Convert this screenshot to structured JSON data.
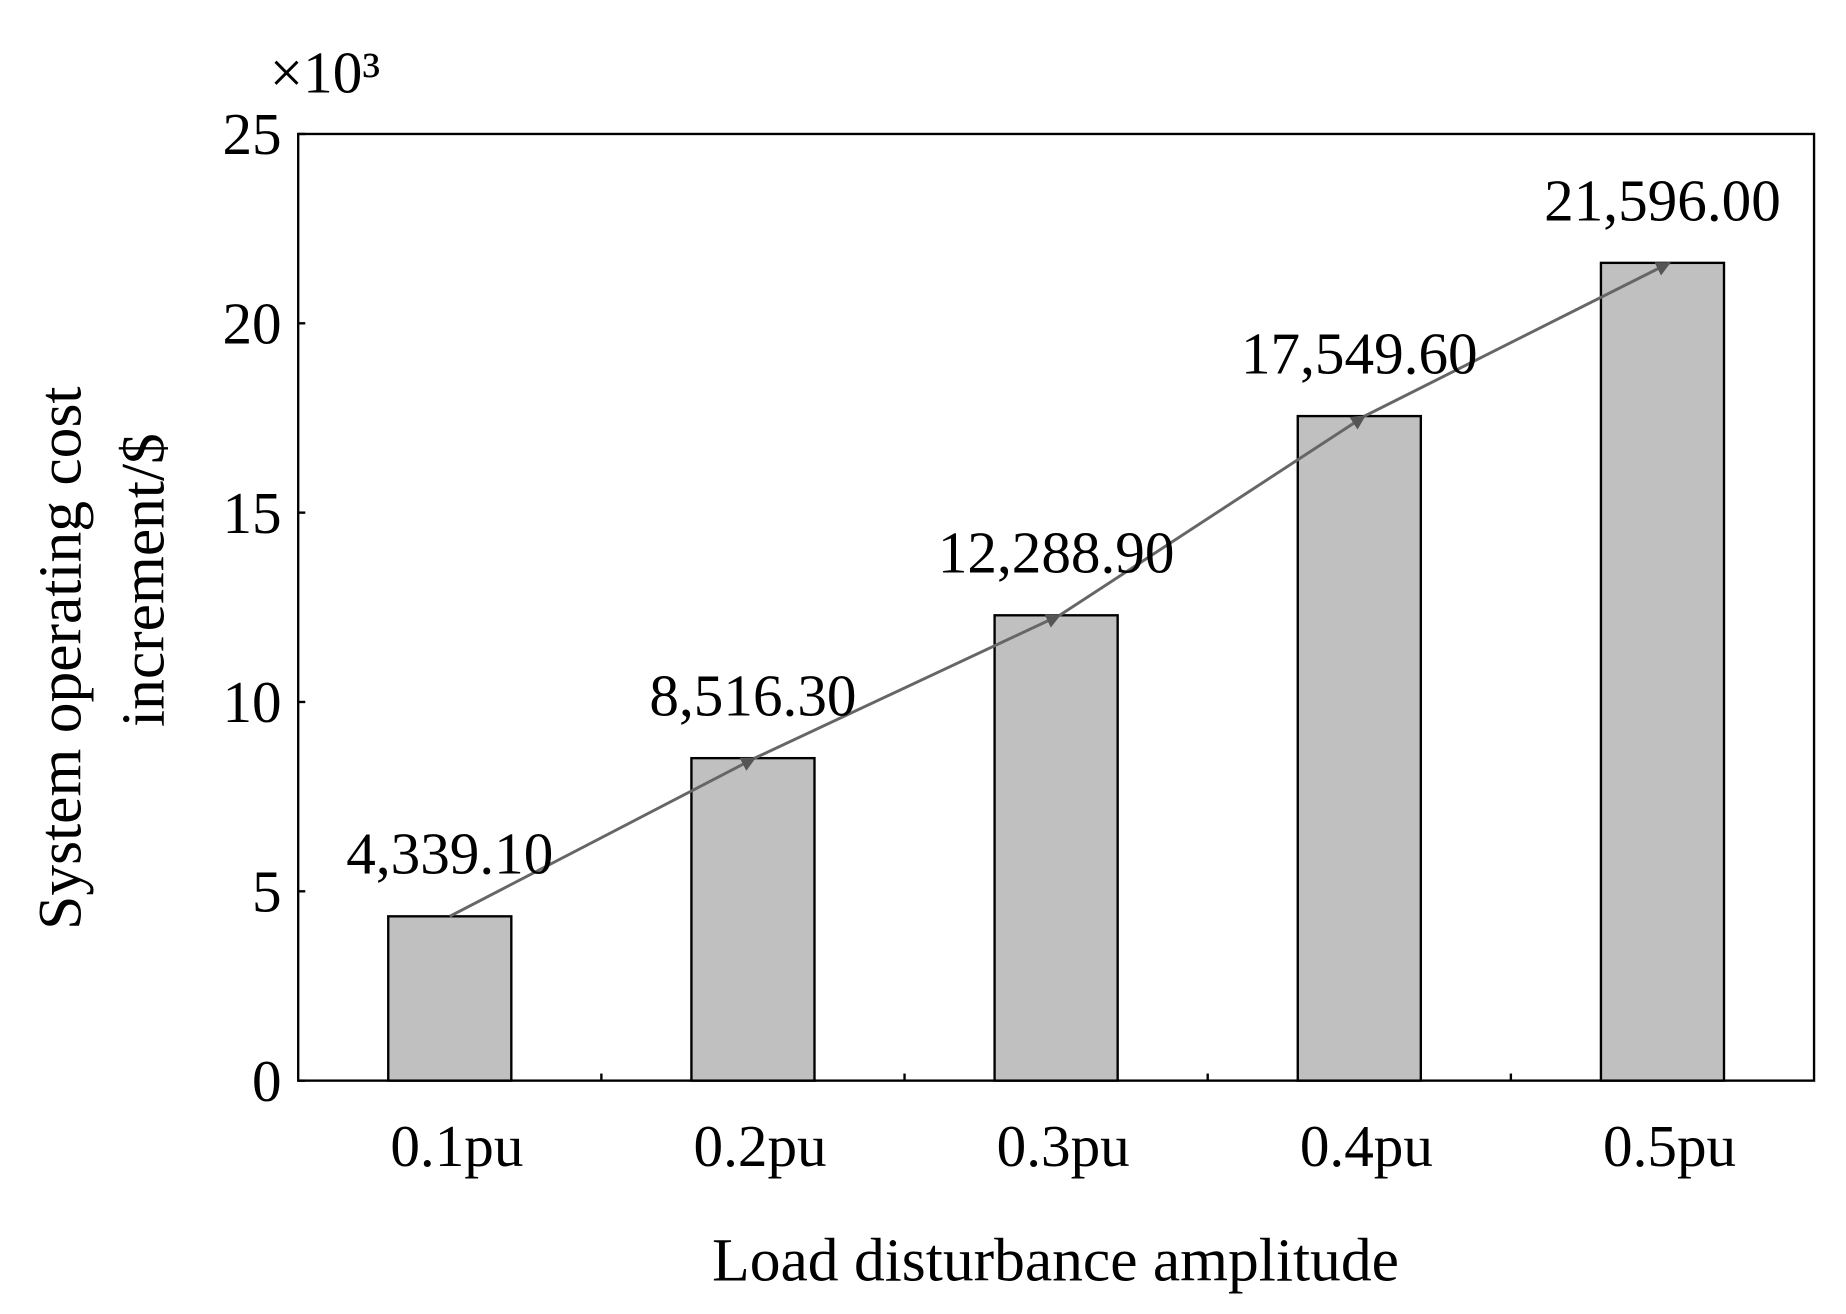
{
  "chart_data": {
    "type": "bar",
    "xlabel": "Load disturbance amplitude",
    "ylabel": [
      "System operating cost",
      "increment/$"
    ],
    "y_multiplier": "×10³",
    "categories": [
      "0.1pu",
      "0.2pu",
      "0.3pu",
      "0.4pu",
      "0.5pu"
    ],
    "values": [
      4.3391,
      8.5163,
      12.2889,
      17.5496,
      21.596
    ],
    "value_labels": [
      "4,339.10",
      "8,516.30",
      "12,288.90",
      "17,549.60",
      "21,596.00"
    ],
    "color": "#c0c0c0",
    "trend_color": "#666666",
    "ylim": [
      0,
      25
    ],
    "yticks": [
      0,
      5,
      10,
      15,
      20,
      25
    ]
  }
}
